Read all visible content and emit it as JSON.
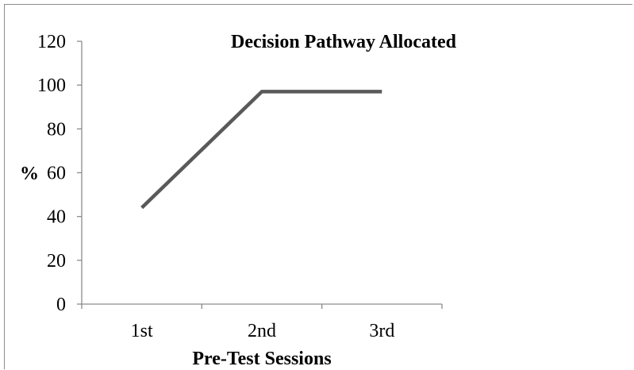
{
  "chart_data": {
    "type": "line",
    "title": "Decision Pathway Allocated",
    "xlabel": "Pre-Test Sessions",
    "ylabel": "%",
    "categories": [
      "1st",
      "2nd",
      "3rd"
    ],
    "series": [
      {
        "values": [
          44,
          97,
          97
        ]
      }
    ],
    "ylim": [
      0,
      120
    ],
    "yticks": [
      0,
      20,
      40,
      60,
      80,
      100,
      120
    ],
    "grid": false,
    "legend": "none",
    "line_color": "#595959"
  }
}
